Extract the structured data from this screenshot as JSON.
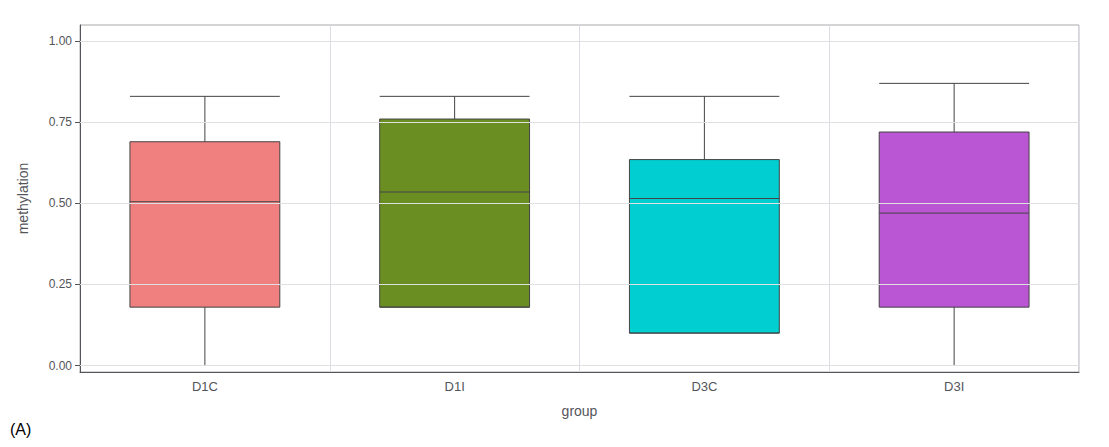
{
  "chart_data": {
    "type": "box",
    "categories": [
      "D1C",
      "D1I",
      "D3C",
      "D3I"
    ],
    "values": [
      {
        "whislo": 0.0,
        "q1": 0.18,
        "med": 0.505,
        "q3": 0.69,
        "whishi": 0.83
      },
      {
        "whislo": 0.18,
        "q1": 0.18,
        "med": 0.535,
        "q3": 0.76,
        "whishi": 0.83
      },
      {
        "whislo": 0.1,
        "q1": 0.1,
        "med": 0.515,
        "q3": 0.635,
        "whishi": 0.83
      },
      {
        "whislo": 0.0,
        "q1": 0.18,
        "med": 0.47,
        "q3": 0.72,
        "whishi": 0.87
      }
    ],
    "colors": [
      "#F08080",
      "#6B8E23",
      "#00CED1",
      "#BA55D3"
    ],
    "xlabel": "group",
    "ylabel": "methylation",
    "ylim": [
      -0.02,
      1.05
    ],
    "yticks": [
      {
        "value": 0.0,
        "label": "0.00"
      },
      {
        "value": 0.25,
        "label": "0.25"
      },
      {
        "value": 0.5,
        "label": "0.50"
      },
      {
        "value": 0.75,
        "label": "0.75"
      },
      {
        "value": 1.0,
        "label": "1.00"
      }
    ],
    "annotation": "(A)",
    "grid": true
  }
}
